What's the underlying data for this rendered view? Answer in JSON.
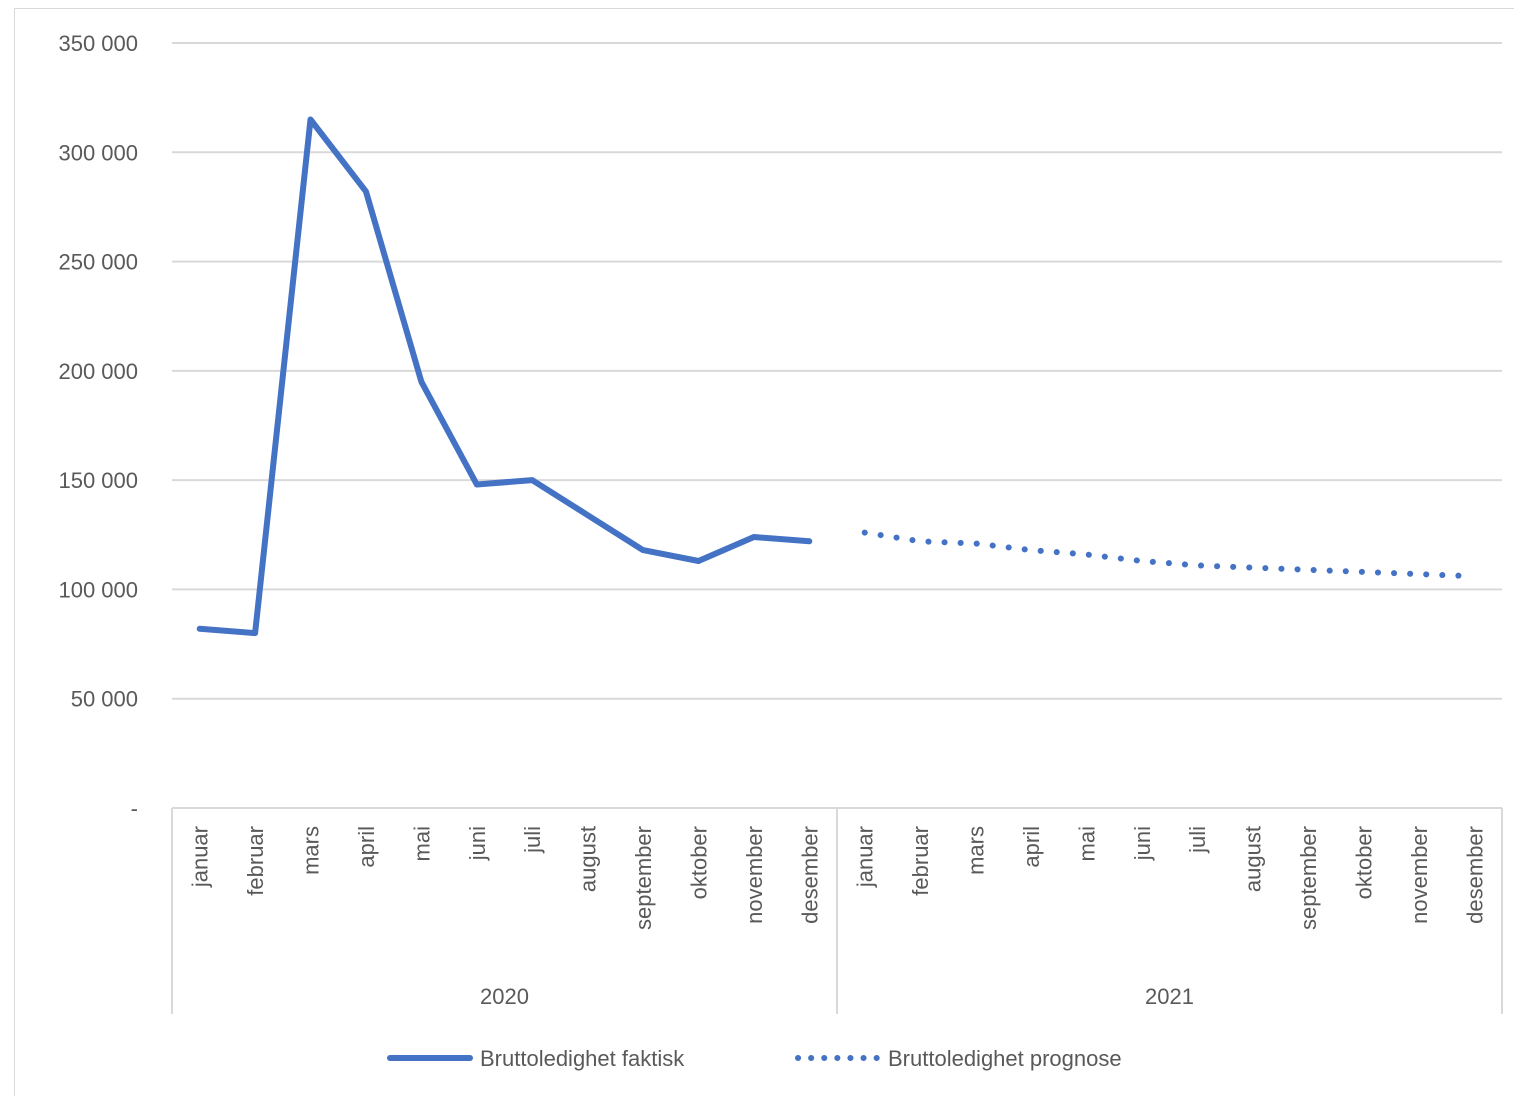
{
  "chart_data": {
    "type": "line",
    "title": "",
    "xlabel": "",
    "ylabel": "",
    "ylim": [
      0,
      350000
    ],
    "yticks": [
      0,
      50000,
      100000,
      150000,
      200000,
      250000,
      300000,
      350000
    ],
    "ytick_labels": [
      "-",
      "50 000",
      "100 000",
      "150 000",
      "200 000",
      "250 000",
      "300 000",
      "350 000"
    ],
    "grid": true,
    "legend_position": "bottom",
    "groups": [
      {
        "label": "2020",
        "categories": [
          "januar",
          "februar",
          "mars",
          "april",
          "mai",
          "juni",
          "juli",
          "august",
          "september",
          "oktober",
          "november",
          "desember"
        ]
      },
      {
        "label": "2021",
        "categories": [
          "januar",
          "februar",
          "mars",
          "april",
          "mai",
          "juni",
          "juli",
          "august",
          "september",
          "oktober",
          "november",
          "desember"
        ]
      }
    ],
    "series": [
      {
        "name": "Bruttoledighet faktisk",
        "style": "solid",
        "color": "#4472c4",
        "values": [
          82000,
          80000,
          315000,
          282000,
          195000,
          148000,
          150000,
          134000,
          118000,
          113000,
          124000,
          122000,
          null,
          null,
          null,
          null,
          null,
          null,
          null,
          null,
          null,
          null,
          null,
          null
        ]
      },
      {
        "name": "Bruttoledighet prognose",
        "style": "dotted",
        "color": "#4472c4",
        "values": [
          null,
          null,
          null,
          null,
          null,
          null,
          null,
          null,
          null,
          null,
          null,
          null,
          126000,
          122000,
          121000,
          118000,
          116000,
          113000,
          111000,
          110000,
          109000,
          108000,
          107000,
          106000
        ]
      }
    ]
  }
}
